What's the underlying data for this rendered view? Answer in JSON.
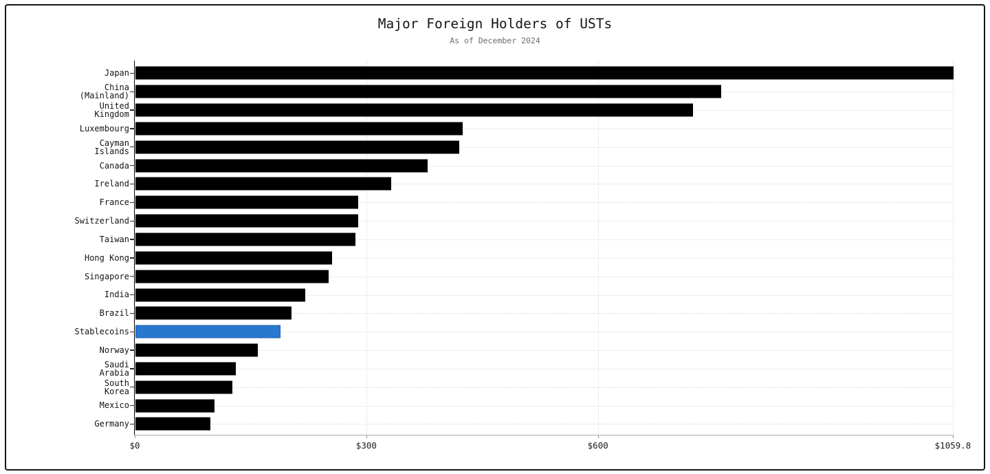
{
  "figure": {
    "background": "#ffffff",
    "border_color": "#141414"
  },
  "chart_data": {
    "type": "bar",
    "orientation": "horizontal",
    "title": "Major Foreign Holders of USTs",
    "subtitle": "As of December 2024",
    "xlabel": "",
    "ylabel": "",
    "xlim": [
      0,
      1059.8
    ],
    "grid": "dotted light-gray; horizontal line at each category, vertical lines at x ticks",
    "legend": "none",
    "bar_color": "#000000",
    "highlight_color": "#2878d0",
    "values_estimated_from_axis": true,
    "x_ticks": [
      {
        "value": 0,
        "label": "$0"
      },
      {
        "value": 300,
        "label": "$300"
      },
      {
        "value": 600,
        "label": "$600"
      },
      {
        "value": 1059.8,
        "label": "$1059.8"
      }
    ],
    "bars": [
      {
        "label": "Japan",
        "value": 1059.8,
        "highlight": false
      },
      {
        "label": "China\n(Mainland)",
        "value": 759.0,
        "highlight": false
      },
      {
        "label": "United\nKingdom",
        "value": 722.7,
        "highlight": false
      },
      {
        "label": "Luxembourg",
        "value": 424.0,
        "highlight": false
      },
      {
        "label": "Cayman\nIslands",
        "value": 419.5,
        "highlight": false
      },
      {
        "label": "Canada",
        "value": 378.8,
        "highlight": false
      },
      {
        "label": "Ireland",
        "value": 331.0,
        "highlight": false
      },
      {
        "label": "France",
        "value": 288.6,
        "highlight": false
      },
      {
        "label": "Switzerland",
        "value": 288.3,
        "highlight": false
      },
      {
        "label": "Taiwan",
        "value": 284.8,
        "highlight": false
      },
      {
        "label": "Hong Kong",
        "value": 255.0,
        "highlight": false
      },
      {
        "label": "Singapore",
        "value": 250.0,
        "highlight": false
      },
      {
        "label": "India",
        "value": 219.8,
        "highlight": false
      },
      {
        "label": "Brazil",
        "value": 202.0,
        "highlight": false
      },
      {
        "label": "Stablecoins",
        "value": 188.0,
        "highlight": true
      },
      {
        "label": "Norway",
        "value": 158.4,
        "highlight": false
      },
      {
        "label": "Saudi\nArabia",
        "value": 130.0,
        "highlight": false
      },
      {
        "label": "South\nKorea",
        "value": 125.5,
        "highlight": false
      },
      {
        "label": "Mexico",
        "value": 102.3,
        "highlight": false
      },
      {
        "label": "Germany",
        "value": 97.5,
        "highlight": false
      }
    ]
  }
}
